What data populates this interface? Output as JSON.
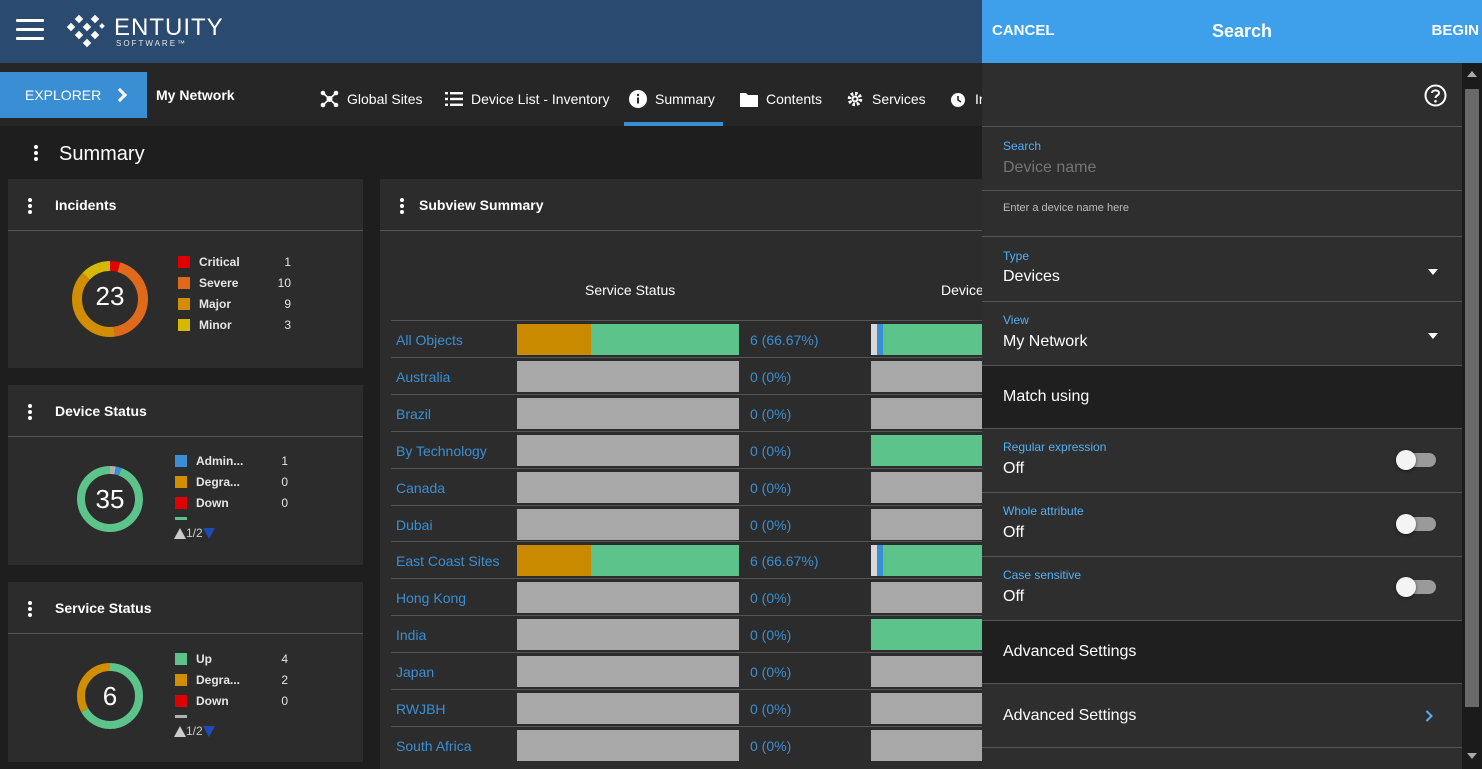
{
  "header": {
    "logo_name": "ENTUITY",
    "logo_sub": "SOFTWARE™",
    "hamburger_icon": "hamburger-menu-icon"
  },
  "nav": {
    "explorer_label": "EXPLORER",
    "network_label": "My Network",
    "tabs": [
      {
        "label": "Global Sites",
        "icon": "network-nodes-icon"
      },
      {
        "label": "Device List - Inventory",
        "icon": "list-icon"
      },
      {
        "label": "Summary",
        "icon": "info-icon"
      },
      {
        "label": "Contents",
        "icon": "folder-icon"
      },
      {
        "label": "Services",
        "icon": "gear-icon"
      },
      {
        "label": "Ir",
        "icon": "alarm-clock-icon"
      }
    ],
    "active_tab": "Summary",
    "accent": "#3a8fd4"
  },
  "summary": {
    "title": "Summary"
  },
  "incidents": {
    "title": "Incidents",
    "total": "23",
    "items": [
      {
        "label": "Critical",
        "value": "1",
        "color": "#e00000",
        "count": 1
      },
      {
        "label": "Severe",
        "value": "10",
        "color": "#e06a1b",
        "count": 10
      },
      {
        "label": "Major",
        "value": "9",
        "color": "#d08e00",
        "count": 9
      },
      {
        "label": "Minor",
        "value": "3",
        "color": "#d6b800",
        "count": 3
      }
    ]
  },
  "device_status": {
    "title": "Device Status",
    "total": "35",
    "pager": "1/2",
    "items": [
      {
        "label": "Admin...",
        "value": "1",
        "color": "#3a8fd4"
      },
      {
        "label": "Degra...",
        "value": "0",
        "color": "#d08e00"
      },
      {
        "label": "Down",
        "value": "0",
        "color": "#e00000"
      }
    ],
    "segments": [
      {
        "color": "#b0b0b0",
        "count": 1
      },
      {
        "color": "#3a8fd4",
        "count": 1
      },
      {
        "color": "#5cc48a",
        "count": 33
      }
    ]
  },
  "service_status": {
    "title": "Service Status",
    "total": "6",
    "pager": "1/2",
    "items": [
      {
        "label": "Up",
        "value": "4",
        "color": "#5cc48a"
      },
      {
        "label": "Degra...",
        "value": "2",
        "color": "#d08e00"
      },
      {
        "label": "Down",
        "value": "0",
        "color": "#e00000"
      }
    ],
    "segments": [
      {
        "color": "#5cc48a",
        "count": 4
      },
      {
        "color": "#d08e00",
        "count": 2
      }
    ]
  },
  "subview": {
    "title": "Subview Summary",
    "col_service": "Service Status",
    "col_device": "Device",
    "rows": [
      {
        "name": "All Objects",
        "value": "6 (66.67%)",
        "degraded": 33.3,
        "up": 66.7,
        "dev": "mixed"
      },
      {
        "name": "Australia",
        "value": "0 (0%)",
        "degraded": 0,
        "up": 0,
        "dev": "grey"
      },
      {
        "name": "Brazil",
        "value": "0 (0%)",
        "degraded": 0,
        "up": 0,
        "dev": "grey"
      },
      {
        "name": "By Technology",
        "value": "0 (0%)",
        "degraded": 0,
        "up": 0,
        "dev": "green"
      },
      {
        "name": "Canada",
        "value": "0 (0%)",
        "degraded": 0,
        "up": 0,
        "dev": "grey"
      },
      {
        "name": "Dubai",
        "value": "0 (0%)",
        "degraded": 0,
        "up": 0,
        "dev": "grey"
      },
      {
        "name": "East Coast Sites",
        "value": "6 (66.67%)",
        "degraded": 33.3,
        "up": 66.7,
        "dev": "mixed"
      },
      {
        "name": "Hong Kong",
        "value": "0 (0%)",
        "degraded": 0,
        "up": 0,
        "dev": "grey"
      },
      {
        "name": "India",
        "value": "0 (0%)",
        "degraded": 0,
        "up": 0,
        "dev": "green"
      },
      {
        "name": "Japan",
        "value": "0 (0%)",
        "degraded": 0,
        "up": 0,
        "dev": "grey"
      },
      {
        "name": "RWJBH",
        "value": "0 (0%)",
        "degraded": 0,
        "up": 0,
        "dev": "grey"
      },
      {
        "name": "South Africa",
        "value": "0 (0%)",
        "degraded": 0,
        "up": 0,
        "dev": "grey"
      }
    ]
  },
  "search_panel": {
    "cancel_label": "CANCEL",
    "title": "Search",
    "begin_label": "BEGIN",
    "help_icon": "help-circle-icon",
    "search_label": "Search",
    "search_placeholder": "Device name",
    "search_hint": "Enter a device name here",
    "type_label": "Type",
    "type_value": "Devices",
    "view_label": "View",
    "view_value": "My Network",
    "match_heading": "Match using",
    "regex_label": "Regular expression",
    "regex_value": "Off",
    "whole_label": "Whole attribute",
    "whole_value": "Off",
    "case_label": "Case sensitive",
    "case_value": "Off",
    "advanced_heading": "Advanced Settings",
    "advanced_link": "Advanced Settings",
    "header_color": "#3ea0ea"
  }
}
